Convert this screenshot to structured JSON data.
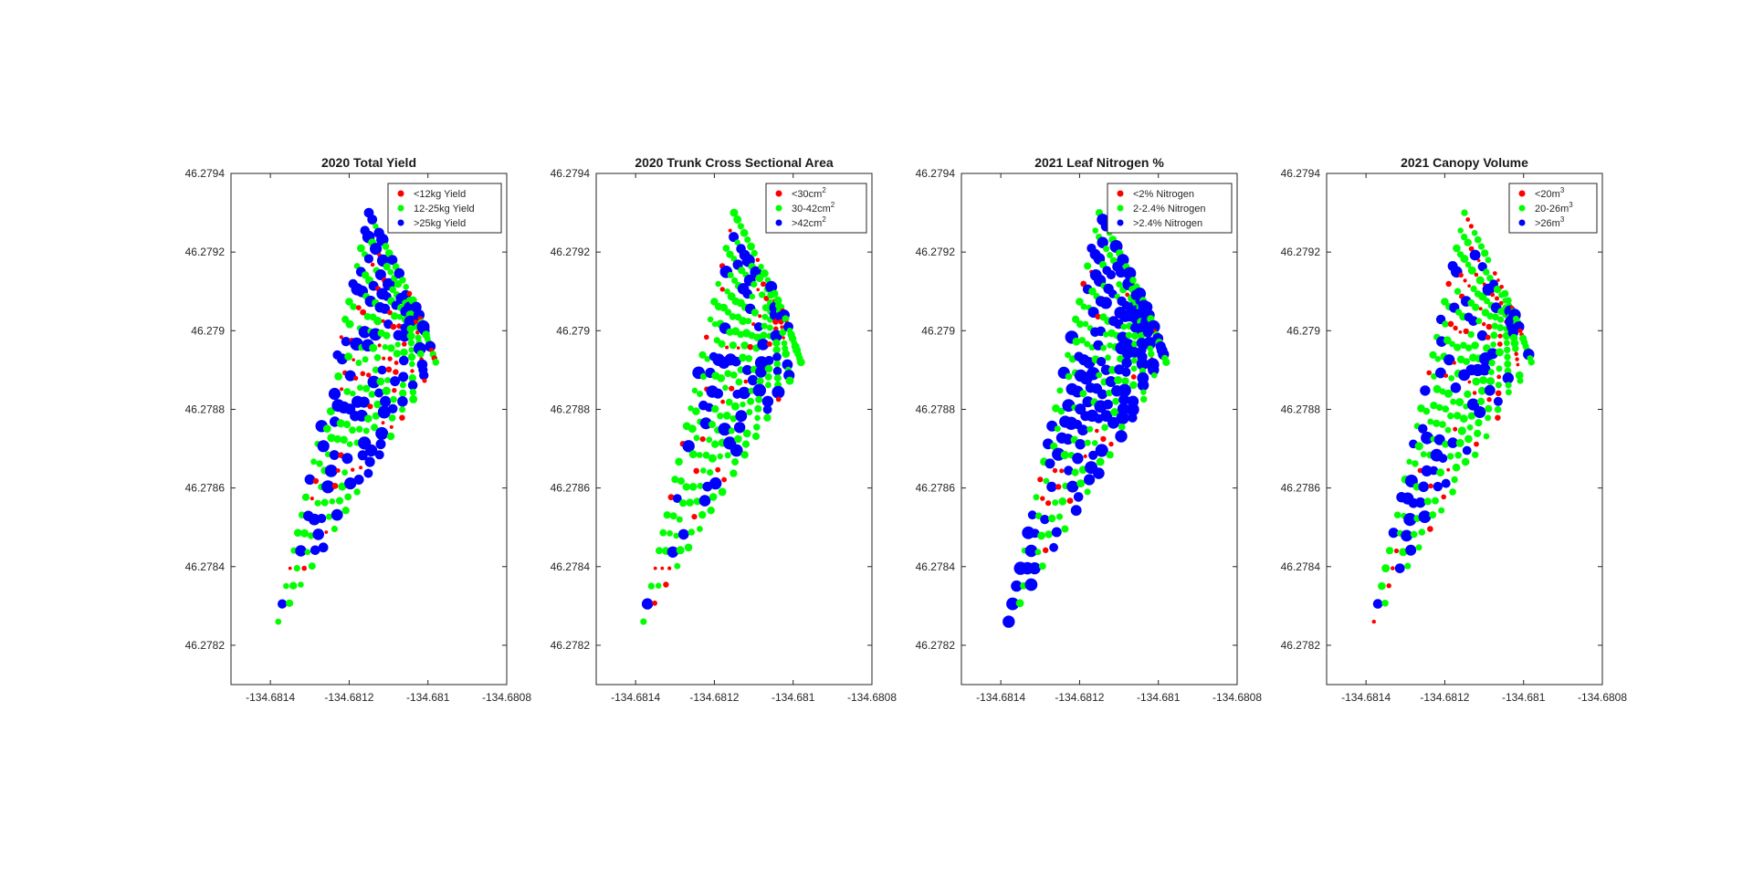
{
  "chart_data": [
    {
      "type": "scatter",
      "title": "2020 Total Yield",
      "xlabel": "",
      "ylabel": "",
      "xlim": [
        -134.6815,
        -134.6808
      ],
      "ylim": [
        46.2781,
        46.2794
      ],
      "xticks": [
        "-134.6814",
        "-134.6812",
        "-134.681",
        "-134.6808"
      ],
      "yticks": [
        "46.2782",
        "46.2784",
        "46.2786",
        "46.2788",
        "46.279",
        "46.2792",
        "46.2794"
      ],
      "legend_position": "top-right",
      "legend": [
        {
          "label": "<12kg Yield",
          "sup": "",
          "color": "#ff0000"
        },
        {
          "label": "12-25kg Yield",
          "sup": "",
          "color": "#00ff00"
        },
        {
          "label": ">25kg Yield",
          "sup": "",
          "color": "#0000ff"
        }
      ],
      "fraction_high": 0.3,
      "fraction_low": 0.2
    },
    {
      "type": "scatter",
      "title": "2020 Trunk Cross Sectional Area",
      "xlabel": "",
      "ylabel": "",
      "xlim": [
        -134.6815,
        -134.6808
      ],
      "ylim": [
        46.2781,
        46.2794
      ],
      "xticks": [
        "-134.6814",
        "-134.6812",
        "-134.681",
        "-134.6808"
      ],
      "yticks": [
        "46.2782",
        "46.2784",
        "46.2786",
        "46.2788",
        "46.279",
        "46.2792",
        "46.2794"
      ],
      "legend_position": "top-right",
      "legend": [
        {
          "label": "<30cm",
          "sup": "2",
          "color": "#ff0000"
        },
        {
          "label": "30-42cm",
          "sup": "2",
          "color": "#00ff00"
        },
        {
          "label": ">42cm",
          "sup": "2",
          "color": "#0000ff"
        }
      ],
      "fraction_high": 0.2,
      "fraction_low": 0.15
    },
    {
      "type": "scatter",
      "title": "2021 Leaf Nitrogen %",
      "xlabel": "",
      "ylabel": "",
      "xlim": [
        -134.6815,
        -134.6808
      ],
      "ylim": [
        46.2781,
        46.2794
      ],
      "xticks": [
        "-134.6814",
        "-134.6812",
        "-134.681",
        "-134.6808"
      ],
      "yticks": [
        "46.2782",
        "46.2784",
        "46.2786",
        "46.2788",
        "46.279",
        "46.2792",
        "46.2794"
      ],
      "legend_position": "top-right",
      "legend": [
        {
          "label": "<2% Nitrogen",
          "sup": "",
          "color": "#ff0000"
        },
        {
          "label": "2-2.4% Nitrogen",
          "sup": "",
          "color": "#00ff00"
        },
        {
          "label": ">2.4% Nitrogen",
          "sup": "",
          "color": "#0000ff"
        }
      ],
      "fraction_high": 0.55,
      "fraction_low": 0.07
    },
    {
      "type": "scatter",
      "title": "2021 Canopy Volume",
      "xlabel": "",
      "ylabel": "",
      "xlim": [
        -134.6815,
        -134.6808
      ],
      "ylim": [
        46.2781,
        46.2794
      ],
      "xticks": [
        "-134.6814",
        "-134.6812",
        "-134.681",
        "-134.6808"
      ],
      "yticks": [
        "46.2782",
        "46.2784",
        "46.2786",
        "46.2788",
        "46.279",
        "46.2792",
        "46.2794"
      ],
      "legend_position": "top-right",
      "legend": [
        {
          "label": "<20m",
          "sup": "3",
          "color": "#ff0000"
        },
        {
          "label": "20-26m",
          "sup": "3",
          "color": "#00ff00"
        },
        {
          "label": ">26m",
          "sup": "3",
          "color": "#0000ff"
        }
      ],
      "fraction_high": 0.22,
      "fraction_low": 0.18
    }
  ]
}
